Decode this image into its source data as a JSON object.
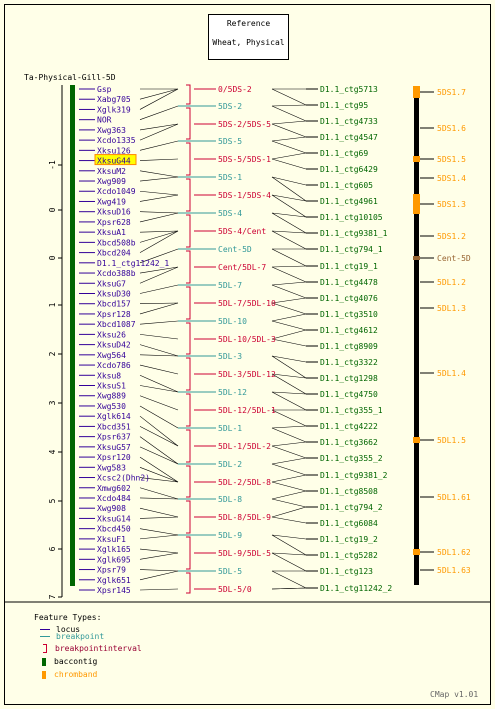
{
  "header": {
    "line1": "Reference",
    "line2": "Wheat, Physical"
  },
  "map_title": "Ta-Physical-Gill-5D",
  "axis_ticks": [
    "-1",
    "0",
    "0",
    "1",
    "2",
    "3",
    "4",
    "5",
    "6",
    "7"
  ],
  "markers": [
    "Gsp",
    "Xabg705",
    "Xglk319",
    "NOR",
    "Xwg363",
    "Xcdo1335",
    "Xksu126",
    "XksuG44",
    "XksuM2",
    "Xwg909",
    "Xcdo1049",
    "Xwg419",
    "XksuD16",
    "Xpsr628",
    "XksuA1",
    "Xbcd508b",
    "Xbcd204",
    "D1.1_ctg11242_1",
    "Xcdo388b",
    "XksuG7",
    "XksuD30",
    "Xbcd157",
    "Xpsr128",
    "Xbcd1087",
    "Xksu26",
    "XksuD42",
    "Xwg564",
    "Xcdo786",
    "Xksu8",
    "XksuS1",
    "Xwg889",
    "Xwg530",
    "Xglk614",
    "Xbcd351",
    "Xpsr637",
    "XksuG57",
    "Xpsr120",
    "Xwg583",
    "Xcsc2(Dhn2)",
    "Xmwg602",
    "Xcdo484",
    "Xwg908",
    "XksuG14",
    "Xbcd450",
    "XksuF1",
    "Xglk165",
    "Xglk695",
    "Xpsr79",
    "Xglk651",
    "Xpsr145"
  ],
  "highlighted_marker": "XksuG44",
  "bins": [
    {
      "label": "0/5DS-2",
      "kind": "interval"
    },
    {
      "label": "5DS-2",
      "kind": "point"
    },
    {
      "label": "5DS-2/5DS-5",
      "kind": "interval"
    },
    {
      "label": "5DS-5",
      "kind": "point"
    },
    {
      "label": "5DS-5/5DS-1",
      "kind": "interval"
    },
    {
      "label": "5DS-1",
      "kind": "point"
    },
    {
      "label": "5DS-1/5DS-4",
      "kind": "interval"
    },
    {
      "label": "5DS-4",
      "kind": "point"
    },
    {
      "label": "5DS-4/Cent",
      "kind": "interval"
    },
    {
      "label": "Cent-5D",
      "kind": "point"
    },
    {
      "label": "Cent/5DL-7",
      "kind": "interval"
    },
    {
      "label": "5DL-7",
      "kind": "point"
    },
    {
      "label": "5DL-7/5DL-10",
      "kind": "interval"
    },
    {
      "label": "5DL-10",
      "kind": "point"
    },
    {
      "label": "5DL-10/5DL-3",
      "kind": "interval"
    },
    {
      "label": "5DL-3",
      "kind": "point"
    },
    {
      "label": "5DL-3/5DL-12",
      "kind": "interval"
    },
    {
      "label": "5DL-12",
      "kind": "point"
    },
    {
      "label": "5DL-12/5DL-1",
      "kind": "interval"
    },
    {
      "label": "5DL-1",
      "kind": "point"
    },
    {
      "label": "5DL-1/5DL-2",
      "kind": "interval"
    },
    {
      "label": "5DL-2",
      "kind": "point"
    },
    {
      "label": "5DL-2/5DL-8",
      "kind": "interval"
    },
    {
      "label": "5DL-8",
      "kind": "point"
    },
    {
      "label": "5DL-8/5DL-9",
      "kind": "interval"
    },
    {
      "label": "5DL-9",
      "kind": "point"
    },
    {
      "label": "5DL-9/5DL-5",
      "kind": "interval"
    },
    {
      "label": "5DL-5",
      "kind": "point"
    },
    {
      "label": "5DL-5/0",
      "kind": "interval"
    }
  ],
  "contigs": [
    "D1.1_ctg5713",
    "D1.1_ctg95",
    "D1.1_ctg4733",
    "D1.1_ctg4547",
    "D1.1_ctg69",
    "D1.1_ctg6429",
    "D1.1_ctg605",
    "D1.1_ctg4961",
    "D1.1_ctg10105",
    "D1.1_ctg9381_1",
    "D1.1_ctg794_1",
    "D1.1_ctg19_1",
    "D1.1_ctg4478",
    "D1.1_ctg4076",
    "D1.1_ctg3510",
    "D1.1_ctg4612",
    "D1.1_ctg8909",
    "D1.1_ctg3322",
    "D1.1_ctg1298",
    "D1.1_ctg4750",
    "D1.1_ctg355_1",
    "D1.1_ctg4222",
    "D1.1_ctg3662",
    "D1.1_ctg355_2",
    "D1.1_ctg9381_2",
    "D1.1_ctg8508",
    "D1.1_ctg794_2",
    "D1.1_ctg6084",
    "D1.1_ctg19_2",
    "D1.1_ctg5282",
    "D1.1_ctg123",
    "D1.1_ctg11242_2"
  ],
  "chrombands": [
    "5DS1.7",
    "5DS1.6",
    "5DS1.5",
    "5DS1.4",
    "5DS1.3",
    "5DS1.2",
    "Cent-5D",
    "5DL1.2",
    "5DL1.3",
    "5DL1.4",
    "5DL1.5",
    "5DL1.61",
    "5DL1.62",
    "5DL1.63"
  ],
  "legend": {
    "title": "Feature Types:",
    "items": [
      {
        "label": "locus",
        "color": "#330099"
      },
      {
        "label": "breakpoint",
        "color": "#339999"
      },
      {
        "label": "breakpointinterval",
        "color": "#cc0033"
      },
      {
        "label": "baccontig",
        "color": "#006600"
      },
      {
        "label": "chromband",
        "color": "#ff9900"
      }
    ]
  },
  "footer": "CMap v1.01",
  "colors": {
    "background": "#ffffe8",
    "locus": "#330099",
    "breakpoint": "#339999",
    "interval": "#cc0033",
    "contig": "#006600",
    "chromband": "#ff9900",
    "centromere": "#996633",
    "connector": "#000000"
  }
}
